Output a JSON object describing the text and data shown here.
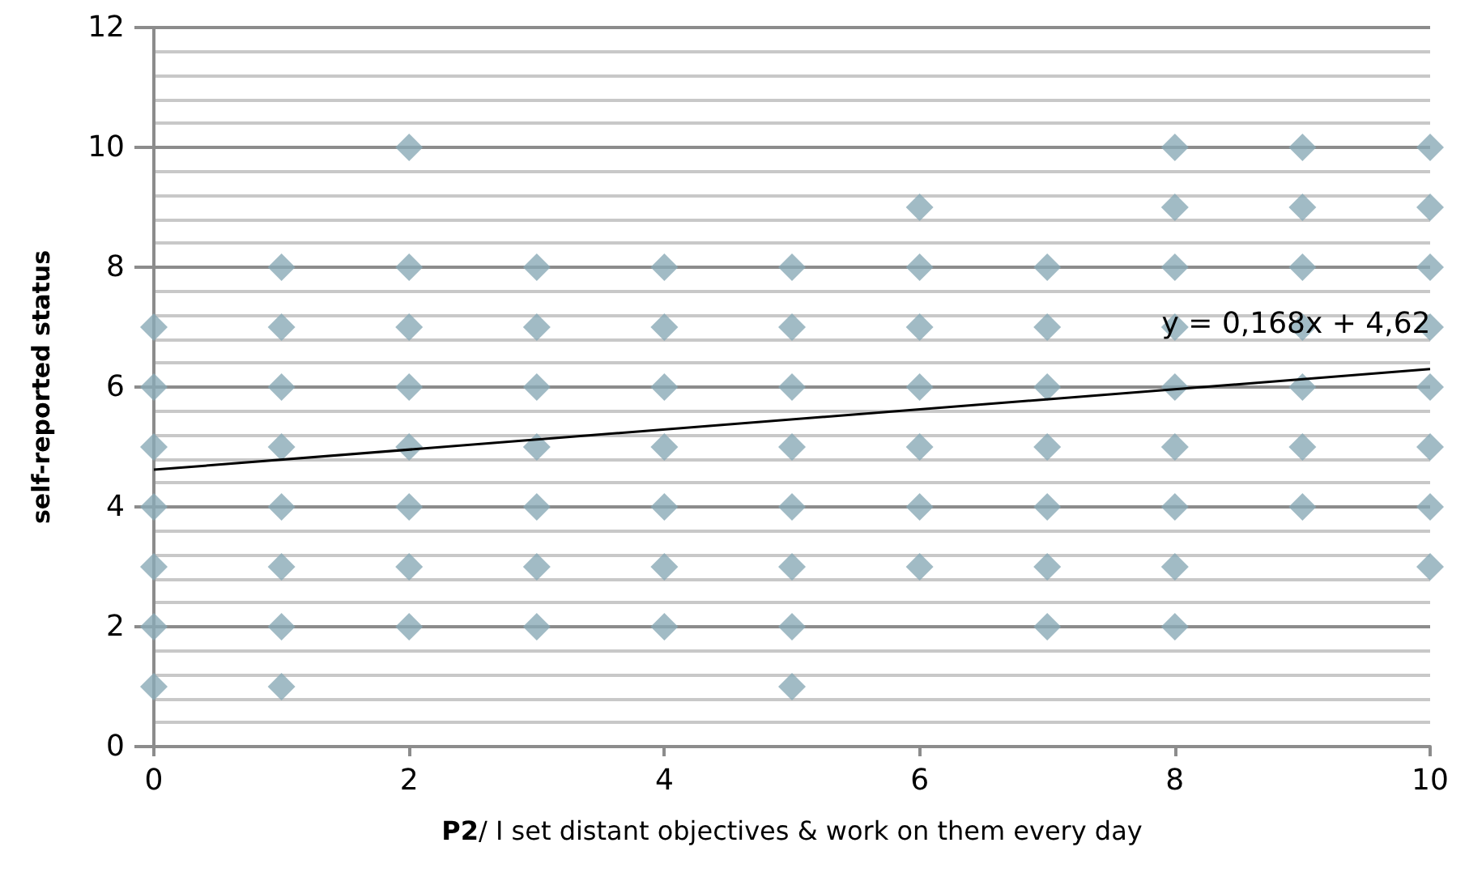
{
  "chart_data": {
    "type": "scatter",
    "xlabel": "P2/ I set distant objectives & work on them every day",
    "ylabel": "self-reported status",
    "series": [
      {
        "color": "#89aab6",
        "x": [
          0,
          0,
          0,
          0,
          0,
          0,
          0,
          1,
          1,
          1,
          1,
          1,
          1,
          1,
          1,
          2,
          2,
          2,
          2,
          2,
          2,
          2,
          2,
          3,
          3,
          3,
          3,
          3,
          3,
          3,
          4,
          4,
          4,
          4,
          4,
          4,
          4,
          5,
          5,
          5,
          5,
          5,
          5,
          5,
          5,
          6,
          6,
          6,
          6,
          6,
          6,
          6,
          7,
          7,
          7,
          7,
          7,
          7,
          7,
          8,
          8,
          8,
          8,
          8,
          8,
          8,
          8,
          8,
          9,
          9,
          9,
          9,
          9,
          9,
          9,
          10,
          10,
          10,
          10,
          10,
          10,
          10,
          10
        ],
        "values": [
          7,
          6,
          5,
          4,
          3,
          2,
          1,
          8,
          7,
          6,
          5,
          4,
          3,
          2,
          1,
          10,
          8,
          7,
          6,
          5,
          4,
          3,
          2,
          8,
          7,
          6,
          5,
          4,
          3,
          2,
          8,
          7,
          6,
          5,
          4,
          3,
          2,
          8,
          7,
          6,
          5,
          4,
          3,
          2,
          1,
          9,
          8,
          7,
          6,
          5,
          4,
          3,
          8,
          7,
          6,
          5,
          4,
          3,
          2,
          10,
          9,
          8,
          7,
          6,
          5,
          4,
          3,
          2,
          10,
          9,
          8,
          7,
          6,
          5,
          4,
          10,
          9,
          8,
          7,
          6,
          5,
          4,
          3
        ]
      },
      {
        "type": "line",
        "marker": "none",
        "color": "#000000",
        "x": [
          0,
          10
        ],
        "values": [
          4.62,
          6.3
        ]
      }
    ],
    "annotations": [
      {
        "text": "y = 0,168x + 4,62",
        "x": 8.95,
        "y": 7.05
      }
    ],
    "marker": "diamond",
    "xlim": [
      0,
      10
    ],
    "xticks": [
      0,
      2,
      4,
      6,
      8,
      10
    ],
    "ylim": [
      0,
      12
    ],
    "yticks": [
      0,
      2,
      4,
      6,
      8,
      10,
      12
    ],
    "grid": "y"
  }
}
